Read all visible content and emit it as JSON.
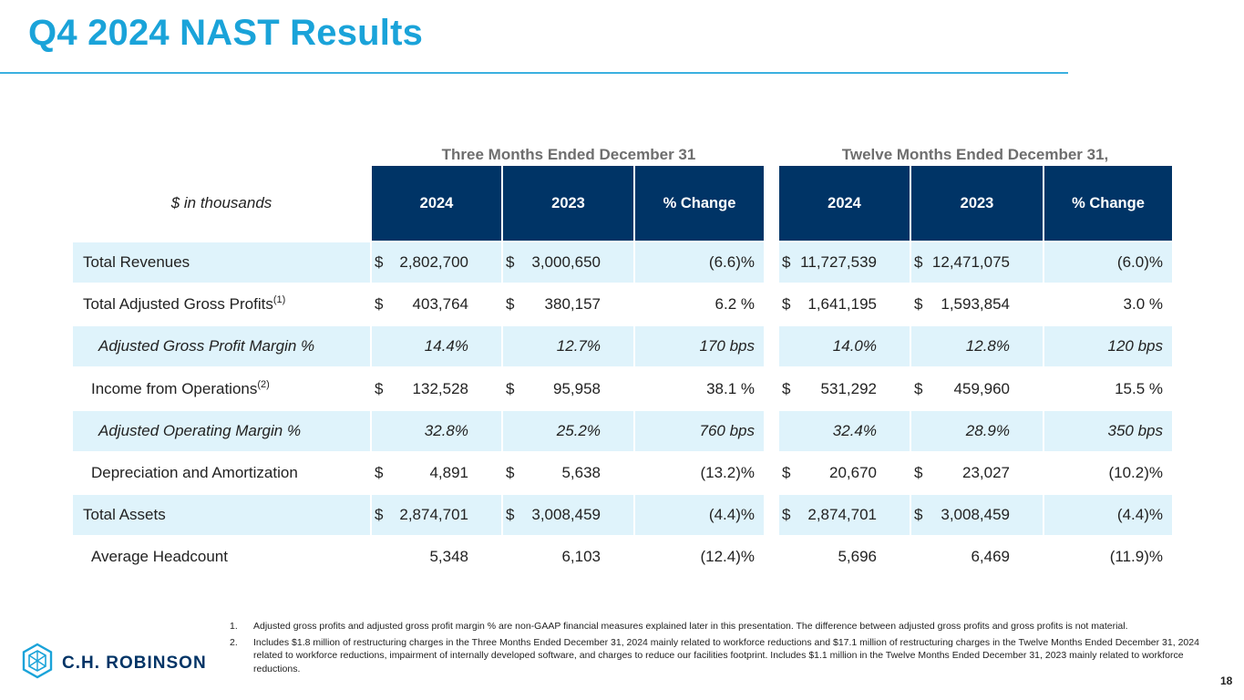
{
  "title": "Q4 2024 NAST Results",
  "group_headers": {
    "three_months": "Three Months Ended December 31",
    "twelve_months": "Twelve Months Ended December 31,"
  },
  "units_label": "$ in thousands",
  "columns": [
    "2024",
    "2023",
    "% Change",
    "2024",
    "2023",
    "% Change"
  ],
  "rows": [
    {
      "label": "Total Revenues",
      "sup": "",
      "style": "plain",
      "shaded": true,
      "cells": [
        {
          "d": "$",
          "v": "2,802,700"
        },
        {
          "d": "$",
          "v": "3,000,650"
        },
        {
          "d": "",
          "v": "(6.6)%"
        },
        {
          "d": "$",
          "v": "11,727,539"
        },
        {
          "d": "$",
          "v": "12,471,075"
        },
        {
          "d": "",
          "v": "(6.0)%"
        }
      ]
    },
    {
      "label": "Total Adjusted Gross Profits",
      "sup": "(1)",
      "style": "plain",
      "shaded": false,
      "cells": [
        {
          "d": "$",
          "v": "403,764"
        },
        {
          "d": "$",
          "v": "380,157"
        },
        {
          "d": "",
          "v": "6.2 %"
        },
        {
          "d": "$",
          "v": "1,641,195"
        },
        {
          "d": "$",
          "v": "1,593,854"
        },
        {
          "d": "",
          "v": "3.0 %"
        }
      ]
    },
    {
      "label": "Adjusted Gross Profit Margin %",
      "sup": "",
      "style": "italic",
      "shaded": true,
      "cells": [
        {
          "d": "",
          "v": "14.4%"
        },
        {
          "d": "",
          "v": "12.7%"
        },
        {
          "d": "",
          "v": "170 bps"
        },
        {
          "d": "",
          "v": "14.0%"
        },
        {
          "d": "",
          "v": "12.8%"
        },
        {
          "d": "",
          "v": "120 bps"
        }
      ]
    },
    {
      "label": "Income from Operations",
      "sup": "(2)",
      "style": "indent",
      "shaded": false,
      "cells": [
        {
          "d": "$",
          "v": "132,528"
        },
        {
          "d": "$",
          "v": "95,958"
        },
        {
          "d": "",
          "v": "38.1 %"
        },
        {
          "d": "$",
          "v": "531,292"
        },
        {
          "d": "$",
          "v": "459,960"
        },
        {
          "d": "",
          "v": "15.5 %"
        }
      ]
    },
    {
      "label": "Adjusted Operating Margin %",
      "sup": "",
      "style": "italic",
      "shaded": true,
      "cells": [
        {
          "d": "",
          "v": "32.8%"
        },
        {
          "d": "",
          "v": "25.2%"
        },
        {
          "d": "",
          "v": "760 bps"
        },
        {
          "d": "",
          "v": "32.4%"
        },
        {
          "d": "",
          "v": "28.9%"
        },
        {
          "d": "",
          "v": "350 bps"
        }
      ]
    },
    {
      "label": "Depreciation and Amortization",
      "sup": "",
      "style": "indent",
      "shaded": false,
      "cells": [
        {
          "d": "$",
          "v": "4,891"
        },
        {
          "d": "$",
          "v": "5,638"
        },
        {
          "d": "",
          "v": "(13.2)%"
        },
        {
          "d": "$",
          "v": "20,670"
        },
        {
          "d": "$",
          "v": "23,027"
        },
        {
          "d": "",
          "v": "(10.2)%"
        }
      ]
    },
    {
      "label": "Total Assets",
      "sup": "",
      "style": "plain",
      "shaded": true,
      "cells": [
        {
          "d": "$",
          "v": "2,874,701"
        },
        {
          "d": "$",
          "v": "3,008,459"
        },
        {
          "d": "",
          "v": "(4.4)%"
        },
        {
          "d": "$",
          "v": "2,874,701"
        },
        {
          "d": "$",
          "v": "3,008,459"
        },
        {
          "d": "",
          "v": "(4.4)%"
        }
      ]
    },
    {
      "label": "Average Headcount",
      "sup": "",
      "style": "indent",
      "shaded": false,
      "cells": [
        {
          "d": "",
          "v": "5,348"
        },
        {
          "d": "",
          "v": "6,103"
        },
        {
          "d": "",
          "v": "(12.4)%"
        },
        {
          "d": "",
          "v": "5,696"
        },
        {
          "d": "",
          "v": "6,469"
        },
        {
          "d": "",
          "v": "(11.9)%"
        }
      ]
    }
  ],
  "footnotes": [
    {
      "num": "1.",
      "text": "Adjusted gross profits and adjusted gross profit margin % are non-GAAP financial measures explained later in this presentation. The difference between adjusted gross profits and gross profits is not material."
    },
    {
      "num": "2.",
      "text": "Includes $1.8 million of restructuring charges in the Three Months Ended December 31, 2024 mainly related to workforce reductions and $17.1 million of restructuring charges in the Twelve Months Ended December 31, 2024 related to workforce reductions, impairment of internally developed software, and charges to reduce our facilities footprint. Includes $1.1 million in the Twelve Months Ended December 31, 2023 mainly related to workforce reductions."
    }
  ],
  "logo_text": "C.H. ROBINSON",
  "logo_icon": "hexagon-cube-icon",
  "page_number": "18",
  "colors": {
    "title": "#1aa3d9",
    "header_bg": "#003466",
    "row_shade": "#dff3fb",
    "rule": "#3bb0e0"
  }
}
